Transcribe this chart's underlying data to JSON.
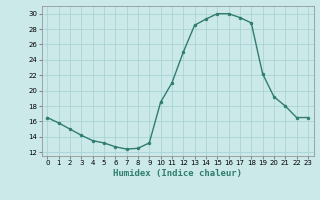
{
  "x": [
    0,
    1,
    2,
    3,
    4,
    5,
    6,
    7,
    8,
    9,
    10,
    11,
    12,
    13,
    14,
    15,
    16,
    17,
    18,
    19,
    20,
    21,
    22,
    23
  ],
  "y": [
    16.5,
    15.8,
    15.0,
    14.2,
    13.5,
    13.2,
    12.7,
    12.4,
    12.5,
    13.2,
    18.5,
    21.0,
    25.0,
    28.5,
    29.3,
    30.0,
    30.0,
    29.5,
    28.8,
    22.2,
    19.2,
    18.0,
    16.5,
    16.5
  ],
  "line_color": "#2e7d6e",
  "marker": "o",
  "markersize": 2.0,
  "linewidth": 1.0,
  "bg_color": "#cce9e9",
  "grid_color": "#aad4d4",
  "xlabel": "Humidex (Indice chaleur)",
  "xlabel_fontsize": 6.5,
  "ylabel_ticks": [
    12,
    14,
    16,
    18,
    20,
    22,
    24,
    26,
    28,
    30
  ],
  "xlim": [
    -0.5,
    23.5
  ],
  "ylim": [
    11.5,
    31.0
  ],
  "xticks": [
    0,
    1,
    2,
    3,
    4,
    5,
    6,
    7,
    8,
    9,
    10,
    11,
    12,
    13,
    14,
    15,
    16,
    17,
    18,
    19,
    20,
    21,
    22,
    23
  ],
  "tick_fontsize": 5.0
}
